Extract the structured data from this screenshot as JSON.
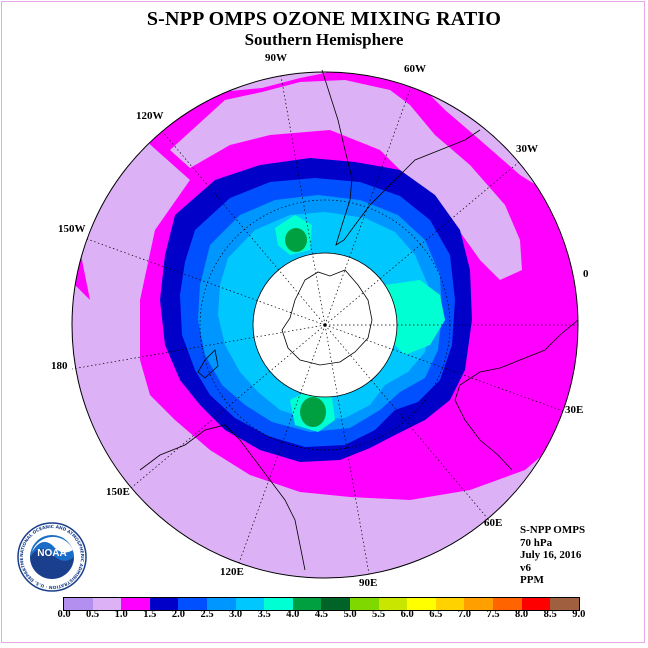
{
  "title": "S-NPP OMPS OZONE MIXING RATIO",
  "subtitle": "Southern Hemisphere",
  "longitude_labels": [
    "90W",
    "60W",
    "30W",
    "0",
    "30E",
    "60E",
    "90E",
    "120E",
    "150E",
    "180",
    "150W",
    "120W"
  ],
  "info": {
    "instrument": "S-NPP OMPS",
    "level": "70 hPa",
    "date": "July 16, 2016",
    "version": "v6",
    "units": "PPM"
  },
  "logo": {
    "text": "NOAA",
    "ring_text": "NATIONAL OCEANIC AND ATMOSPHERIC ADMINISTRATION · U.S. DEPARTMENT OF COMMERCE"
  },
  "colorbar": {
    "ticks": [
      "0.0",
      "0.5",
      "1.0",
      "1.5",
      "2.0",
      "2.5",
      "3.0",
      "3.5",
      "4.0",
      "4.5",
      "5.0",
      "5.5",
      "6.0",
      "6.5",
      "7.0",
      "7.5",
      "8.0",
      "8.5",
      "9.0"
    ],
    "colors": [
      "#b38ff0",
      "#dcb1f5",
      "#ff00ff",
      "#0000c8",
      "#0050ff",
      "#0096ff",
      "#00c8ff",
      "#00ffd2",
      "#00a040",
      "#006428",
      "#7fd800",
      "#c8e600",
      "#ffff00",
      "#ffd200",
      "#ffa000",
      "#ff6400",
      "#ff0000",
      "#a06040"
    ]
  },
  "colors": {
    "background_field": "#dcb1f5",
    "frame": "#e8a8e8"
  }
}
